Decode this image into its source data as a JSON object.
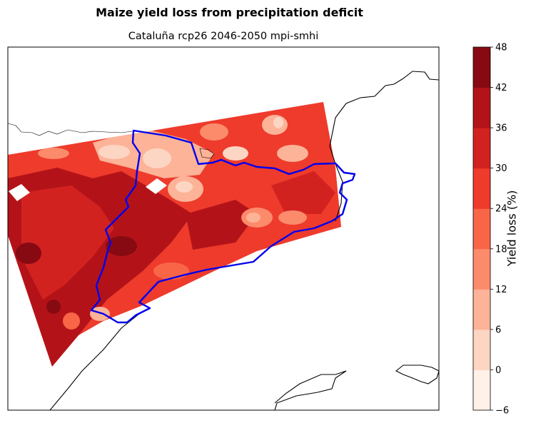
{
  "figure": {
    "suptitle": "Maize yield loss from precipitation deficit",
    "title": "Cataluña rcp26 2046-2050 mpi-smhi",
    "colorbar_label": "Yield loss (%)"
  },
  "chart_data": {
    "type": "heatmap",
    "title": "Maize yield loss from precipitation deficit",
    "subtitle": "Cataluña rcp26 2046-2050 mpi-smhi",
    "colorbar": {
      "label": "Yield loss (%)",
      "ticks": [
        -6,
        0,
        6,
        12,
        18,
        24,
        30,
        36,
        42,
        48
      ],
      "tick_labels": [
        "−6",
        "0",
        "6",
        "12",
        "18",
        "24",
        "30",
        "36",
        "42",
        "48"
      ],
      "colors": [
        "#fff0e8",
        "#fdd5c3",
        "#fcb398",
        "#fc8b6b",
        "#f96547",
        "#ee3b2c",
        "#d22220",
        "#b31318",
        "#870a12"
      ]
    },
    "region_outline_color": "#0000ee",
    "coastline_color": "#000000",
    "grid": false
  }
}
